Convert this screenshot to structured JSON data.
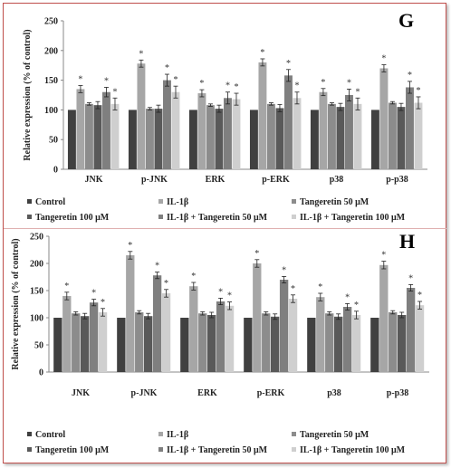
{
  "colors": {
    "frame": "#c0504d",
    "series": [
      "#404040",
      "#a6a6a6",
      "#8c8c8c",
      "#595959",
      "#7f7f7f",
      "#cfcfcf"
    ]
  },
  "legend_entries": [
    "Control",
    "IL-1β",
    "Tangeretin 50 μM",
    "Tangeretin 100 μM",
    "IL-1β + Tangeretin 50 μM",
    "IL-1β + Tangeretin 100 μM"
  ],
  "chart_data": [
    {
      "type": "bar",
      "panel": "G",
      "ylabel": "Relative expression (% of control)",
      "ylim": [
        0,
        250
      ],
      "yticks": [
        0,
        50,
        100,
        150,
        200,
        250
      ],
      "categories": [
        "JNK",
        "p-JNK",
        "ERK",
        "p-ERK",
        "p38",
        "p-p38"
      ],
      "series": [
        {
          "name": "Control",
          "values": [
            100,
            100,
            100,
            100,
            100,
            100
          ],
          "errors": [
            0,
            0,
            0,
            0,
            0,
            0
          ]
        },
        {
          "name": "IL-1β",
          "values": [
            135,
            178,
            128,
            180,
            130,
            170
          ],
          "errors": [
            6,
            6,
            6,
            6,
            6,
            6
          ]
        },
        {
          "name": "Tangeretin 50 μM",
          "values": [
            110,
            102,
            108,
            110,
            110,
            112
          ],
          "errors": [
            2,
            2,
            2,
            2,
            2,
            2
          ]
        },
        {
          "name": "Tangeretin 100 μM",
          "values": [
            108,
            102,
            102,
            103,
            105,
            105
          ],
          "errors": [
            6,
            6,
            6,
            6,
            6,
            6
          ]
        },
        {
          "name": "IL-1β + Tangeretin 50 μM",
          "values": [
            130,
            150,
            120,
            158,
            125,
            138
          ],
          "errors": [
            8,
            10,
            10,
            10,
            10,
            10
          ]
        },
        {
          "name": "IL-1β + Tangeretin 100 μM",
          "values": [
            110,
            130,
            118,
            120,
            110,
            112
          ],
          "errors": [
            10,
            10,
            10,
            10,
            10,
            10
          ]
        }
      ],
      "significance_series": [
        "IL-1β",
        "IL-1β + Tangeretin 50 μM",
        "IL-1β + Tangeretin 100 μM"
      ],
      "significance_marker": "*"
    },
    {
      "type": "bar",
      "panel": "H",
      "ylabel": "Relative expression (% of control)",
      "ylim": [
        0,
        250
      ],
      "yticks": [
        0,
        50,
        100,
        150,
        200,
        250
      ],
      "categories": [
        "JNK",
        "p-JNK",
        "ERK",
        "p-ERK",
        "p38",
        "p-p38"
      ],
      "series": [
        {
          "name": "Control",
          "values": [
            100,
            100,
            100,
            100,
            100,
            100
          ],
          "errors": [
            0,
            0,
            0,
            0,
            0,
            0
          ]
        },
        {
          "name": "IL-1β",
          "values": [
            140,
            215,
            158,
            200,
            138,
            197
          ],
          "errors": [
            7,
            7,
            7,
            7,
            7,
            7
          ]
        },
        {
          "name": "Tangeretin 50 μM",
          "values": [
            108,
            110,
            108,
            108,
            108,
            110
          ],
          "errors": [
            3,
            3,
            3,
            3,
            3,
            3
          ]
        },
        {
          "name": "Tangeretin 100 μM",
          "values": [
            103,
            103,
            105,
            102,
            102,
            105
          ],
          "errors": [
            5,
            5,
            5,
            5,
            5,
            5
          ]
        },
        {
          "name": "IL-1β + Tangeretin 50 μM",
          "values": [
            128,
            178,
            130,
            170,
            120,
            155
          ],
          "errors": [
            6,
            6,
            6,
            6,
            6,
            6
          ]
        },
        {
          "name": "IL-1β + Tangeretin 100 μM",
          "values": [
            110,
            145,
            122,
            135,
            105,
            123
          ],
          "errors": [
            7,
            7,
            7,
            7,
            7,
            7
          ]
        }
      ],
      "significance_series": [
        "IL-1β",
        "IL-1β + Tangeretin 50 μM",
        "IL-1β + Tangeretin 100 μM"
      ],
      "significance_marker": "*"
    }
  ]
}
